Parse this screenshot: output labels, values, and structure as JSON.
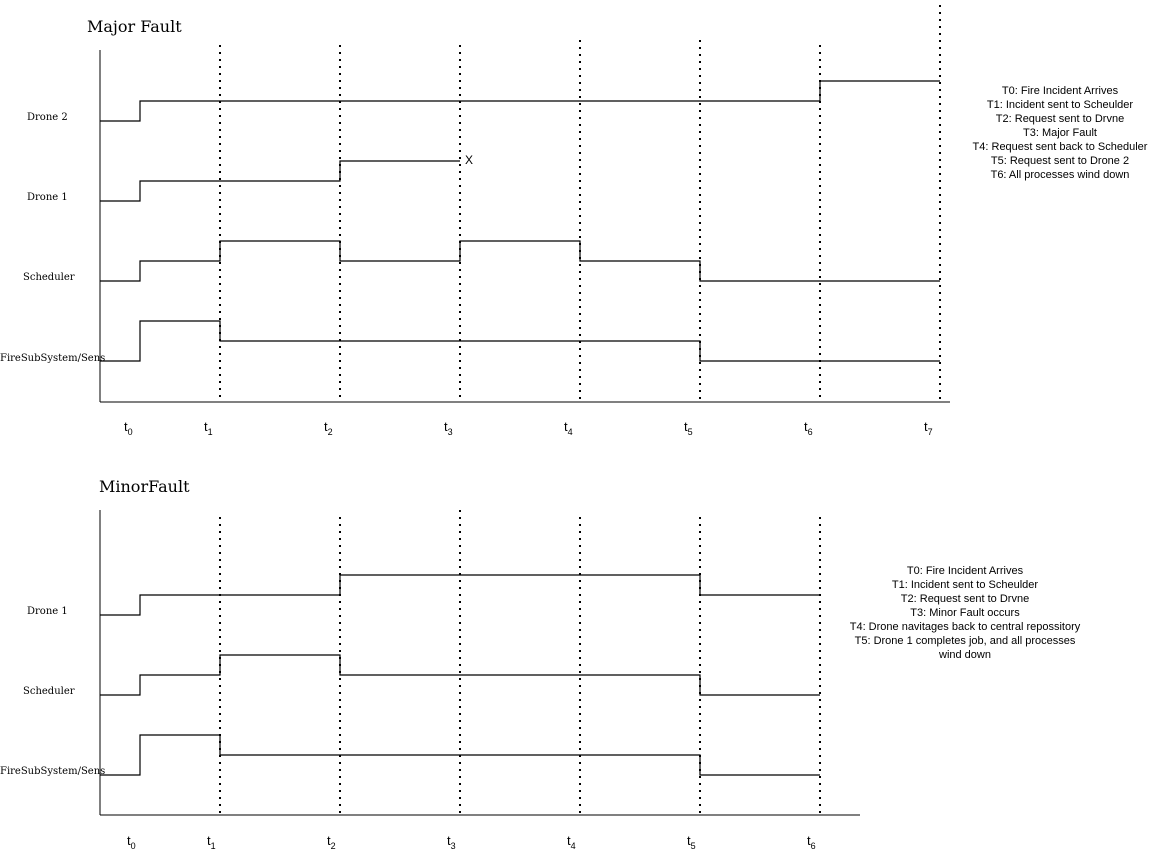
{
  "diagrams": [
    {
      "title": "Major Fault",
      "rows": [
        {
          "label": "Drone 2",
          "steps": [
            [
              0,
              0
            ],
            [
              0.5,
              1
            ],
            [
              4.5,
              1
            ],
            [
              6,
              2
            ],
            [
              7,
              2
            ]
          ],
          "levels": [
            0,
            1,
            2
          ],
          "end": 7
        },
        {
          "label": "Drone 1",
          "steps": [
            [
              0,
              0
            ],
            [
              0.5,
              1
            ],
            [
              2,
              2
            ],
            [
              3,
              2
            ]
          ],
          "levels": [
            0,
            1,
            2
          ],
          "end": 3
        },
        {
          "label": "Scheduler",
          "steps": [
            [
              0,
              0
            ],
            [
              0.5,
              1
            ],
            [
              1,
              2
            ],
            [
              2,
              1
            ],
            [
              3,
              2
            ],
            [
              4,
              1
            ],
            [
              5,
              0
            ],
            [
              7,
              0
            ]
          ],
          "levels": [
            0,
            1,
            2
          ],
          "end": 7
        },
        {
          "label": "FireSubSystem/Sens",
          "steps": [
            [
              0,
              0
            ],
            [
              0.5,
              2
            ],
            [
              1,
              1
            ],
            [
              5,
              0
            ],
            [
              7,
              0
            ]
          ],
          "levels": [
            0,
            1,
            2
          ],
          "end": 7
        }
      ],
      "fault_marker": {
        "row": 1,
        "label": "X"
      },
      "ticks": [
        {
          "base": "t",
          "sub": "0"
        },
        {
          "base": "t",
          "sub": "1"
        },
        {
          "base": "t",
          "sub": "2"
        },
        {
          "base": "t",
          "sub": "3"
        },
        {
          "base": "t",
          "sub": "4"
        },
        {
          "base": "t",
          "sub": "5"
        },
        {
          "base": "t",
          "sub": "6"
        },
        {
          "base": "t",
          "sub": "7"
        }
      ],
      "legend": [
        "T0: Fire Incident Arrives",
        "T1: Incident sent to Scheulder",
        "T2: Request sent to Drvne",
        "T3: Major Fault",
        "T4: Request sent back to Scheduler",
        "T5: Request sent to Drone 2",
        "T6: All processes wind down"
      ]
    },
    {
      "title": "MinorFault",
      "rows": [
        {
          "label": "Drone 1",
          "steps": [
            [
              0,
              0
            ],
            [
              0.5,
              1
            ],
            [
              2,
              2
            ],
            [
              5,
              1
            ],
            [
              6,
              1
            ]
          ],
          "levels": [
            0,
            1,
            2
          ],
          "end": 6
        },
        {
          "label": "Scheduler",
          "steps": [
            [
              0,
              0
            ],
            [
              0.5,
              1
            ],
            [
              1,
              2
            ],
            [
              2,
              1
            ],
            [
              5,
              0
            ],
            [
              6,
              0
            ]
          ],
          "levels": [
            0,
            1,
            2
          ],
          "end": 6
        },
        {
          "label": "FireSubSystem/Sens",
          "steps": [
            [
              0,
              0
            ],
            [
              0.5,
              2
            ],
            [
              1,
              1
            ],
            [
              5,
              0
            ],
            [
              6,
              0
            ]
          ],
          "levels": [
            0,
            1,
            2
          ],
          "end": 6
        }
      ],
      "ticks": [
        {
          "base": "t",
          "sub": "0"
        },
        {
          "base": "t",
          "sub": "1"
        },
        {
          "base": "t",
          "sub": "2"
        },
        {
          "base": "t",
          "sub": "3"
        },
        {
          "base": "t",
          "sub": "4"
        },
        {
          "base": "t",
          "sub": "5"
        },
        {
          "base": "t",
          "sub": "6"
        }
      ],
      "legend": [
        "T0: Fire Incident Arrives",
        "T1: Incident sent to Scheulder",
        "T2: Request sent to Drvne",
        "T3: Minor Fault occurs",
        "T4: Drone navitages back to central repossitory",
        "T5: Drone 1 completes job, and  all processes",
        "wind down"
      ]
    }
  ]
}
